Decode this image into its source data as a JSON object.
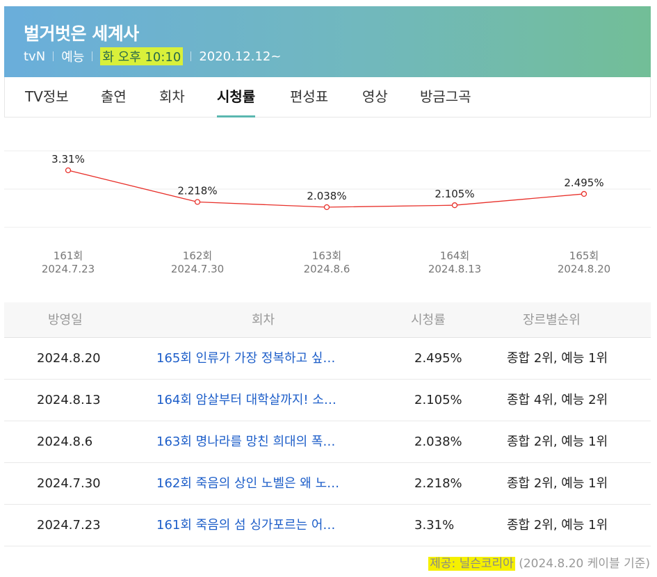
{
  "header": {
    "title": "벌거벗은 세계사",
    "channel": "tvN",
    "genre": "예능",
    "schedule": "화 오후 10:10",
    "start_date": "2020.12.12~"
  },
  "tabs": [
    {
      "label": "TV정보",
      "active": false
    },
    {
      "label": "출연",
      "active": false
    },
    {
      "label": "회차",
      "active": false
    },
    {
      "label": "시청률",
      "active": true
    },
    {
      "label": "편성표",
      "active": false
    },
    {
      "label": "영상",
      "active": false
    },
    {
      "label": "방금그곡",
      "active": false
    }
  ],
  "chart_data": {
    "type": "line",
    "series_color": "#e8302a",
    "points": [
      {
        "episode": "161회",
        "date": "2024.7.23",
        "value": 3.31,
        "label": "3.31%"
      },
      {
        "episode": "162회",
        "date": "2024.7.30",
        "value": 2.218,
        "label": "2.218%"
      },
      {
        "episode": "163회",
        "date": "2024.8.6",
        "value": 2.038,
        "label": "2.038%"
      },
      {
        "episode": "164회",
        "date": "2024.8.13",
        "value": 2.105,
        "label": "2.105%"
      },
      {
        "episode": "165회",
        "date": "2024.8.20",
        "value": 2.495,
        "label": "2.495%"
      }
    ],
    "grid": true
  },
  "table": {
    "headers": {
      "date": "방영일",
      "episode": "회차",
      "rating": "시청률",
      "rank": "장르별순위"
    },
    "rows": [
      {
        "date": "2024.8.20",
        "ep_no": "165",
        "ep_suffix": "회 인류가 가장 정복하고 싶…",
        "rating": "2.495%",
        "rank": "종합 2위, 예능 1위"
      },
      {
        "date": "2024.8.13",
        "ep_no": "164",
        "ep_suffix": "회 암살부터 대학살까지! 소…",
        "rating": "2.105%",
        "rank": "종합 4위, 예능 2위"
      },
      {
        "date": "2024.8.6",
        "ep_no": "163",
        "ep_suffix": "회 명나라를 망친 희대의 폭…",
        "rating": "2.038%",
        "rank": "종합 2위, 예능 1위"
      },
      {
        "date": "2024.7.30",
        "ep_no": "162",
        "ep_suffix": "회 죽음의 상인 노벨은 왜 노…",
        "rating": "2.218%",
        "rank": "종합 2위, 예능 1위"
      },
      {
        "date": "2024.7.23",
        "ep_no": "161",
        "ep_suffix": "회 죽음의 섬 싱가포르는 어…",
        "rating": "3.31%",
        "rank": "종합 2위, 예능 1위"
      }
    ]
  },
  "source": {
    "provider": "제공: 닐슨코리아",
    "basis": "(2024.8.20 케이블 기준)"
  }
}
